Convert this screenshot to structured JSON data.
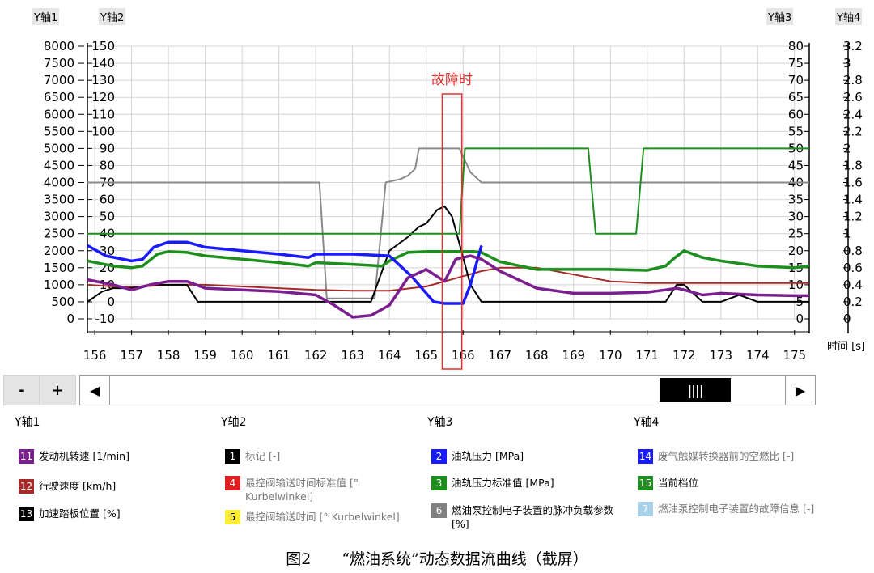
{
  "axes_tags": {
    "top_left": [
      "Y轴1",
      "Y轴2"
    ],
    "top_right": [
      "Y轴3",
      "Y轴4"
    ]
  },
  "chart_data": {
    "type": "line",
    "xlabel": "时间 [s]",
    "xlim": [
      155.8,
      175.4
    ],
    "x_ticks": [
      156,
      157,
      158,
      159,
      160,
      161,
      162,
      163,
      164,
      165,
      166,
      167,
      168,
      169,
      170,
      171,
      172,
      173,
      174,
      175
    ],
    "y_axes": [
      {
        "name": "Y轴1",
        "ticks": [
          8000,
          7500,
          7000,
          6500,
          6000,
          5500,
          5000,
          4500,
          4000,
          3500,
          3000,
          2500,
          2000,
          1500,
          1000,
          500,
          0
        ]
      },
      {
        "name": "Y轴2",
        "ticks": [
          150,
          140,
          130,
          120,
          110,
          100,
          90,
          80,
          70,
          60,
          50,
          40,
          30,
          20,
          10,
          0,
          -10
        ]
      },
      {
        "name": "Y轴3",
        "ticks": [
          80,
          75,
          70,
          65,
          60,
          55,
          50,
          45,
          40,
          35,
          30,
          25,
          20,
          15,
          10,
          5,
          0
        ]
      },
      {
        "name": "Y轴4",
        "ticks": [
          3.2,
          3,
          2.8,
          2.6,
          2.4,
          2.2,
          2,
          1.8,
          1.6,
          1.4,
          1.2,
          1,
          0.8,
          0.6,
          0.4,
          0.2,
          0
        ]
      }
    ],
    "grid": true,
    "annotation": {
      "text": "故障时",
      "x_range": [
        165.5,
        165.9
      ]
    },
    "series": [
      {
        "name": "发动机转速 [1/min]",
        "axis": "Y轴1",
        "color": "#7b1f8f",
        "x": [
          155.8,
          156.5,
          157,
          157.5,
          158,
          158.5,
          159,
          160,
          161,
          161.5,
          162,
          162.5,
          163,
          163.5,
          164,
          164.5,
          165,
          165.5,
          165.8,
          166.2,
          166.5,
          167,
          168,
          169,
          170,
          171,
          171.5,
          171.8,
          172,
          172.5,
          173,
          174,
          175,
          175.4
        ],
        "y": [
          1150,
          1000,
          850,
          1000,
          1100,
          1100,
          900,
          850,
          800,
          750,
          700,
          400,
          50,
          100,
          400,
          1200,
          1450,
          1100,
          1750,
          1850,
          1750,
          1400,
          900,
          750,
          750,
          780,
          850,
          900,
          850,
          700,
          750,
          700,
          680,
          680
        ]
      },
      {
        "name": "行驶速度 [km/h]",
        "axis": "Y轴2",
        "color": "#a52a2a",
        "x": [
          155.8,
          156.5,
          157,
          158,
          159,
          160,
          161,
          162,
          163,
          164,
          165,
          165.5,
          166,
          166.5,
          167,
          168,
          169,
          170,
          171,
          172,
          173,
          174,
          175,
          175.4
        ],
        "y": [
          10,
          9,
          8.5,
          10,
          10,
          9,
          8,
          7,
          6.5,
          6.5,
          9,
          12,
          15,
          18,
          20,
          20,
          16,
          12,
          11,
          11,
          11,
          11,
          11,
          11
        ]
      },
      {
        "name": "加速踏板位置 [%]",
        "axis": "Y轴3",
        "color": "#000000",
        "x": [
          155.8,
          156.2,
          156.5,
          157,
          157.5,
          158,
          158.5,
          158.8,
          159,
          160,
          161,
          162,
          162.5,
          163,
          163.5,
          164,
          164.5,
          164.8,
          165,
          165.3,
          165.5,
          165.7,
          165.9,
          166.2,
          166.5,
          167,
          168,
          169,
          170,
          171,
          171.5,
          171.8,
          172,
          172.5,
          173,
          173.5,
          174,
          175,
          175.4
        ],
        "y": [
          5,
          8,
          9,
          9,
          10,
          10,
          10,
          5,
          5,
          5,
          5,
          5,
          5,
          5,
          5,
          20,
          24,
          27,
          28,
          32,
          33,
          30,
          22,
          10,
          5,
          5,
          5,
          5,
          5,
          5,
          5,
          10,
          10,
          5,
          5,
          7,
          5,
          5,
          5
        ]
      },
      {
        "name": "油轨压力 [MPa]",
        "axis": "Y轴2",
        "color": "#1a1aff",
        "x": [
          155.8,
          156.3,
          157,
          157.3,
          157.6,
          158,
          158.5,
          159,
          160,
          161,
          161.8,
          162,
          163,
          164,
          164.6,
          165.2,
          165.5,
          165.8,
          166,
          166.2,
          166.5
        ],
        "y": [
          33,
          27,
          24,
          25,
          32,
          35,
          35,
          32,
          30,
          28,
          26,
          28,
          28,
          27,
          15,
          0,
          -1,
          -1,
          -1,
          10,
          33
        ]
      },
      {
        "name": "油轨压力标准值 [MPa]",
        "axis": "Y轴4",
        "color": "#1e8f1e",
        "x": [
          155.8,
          156.5,
          157,
          157.3,
          157.7,
          158,
          158.5,
          159,
          160,
          161,
          161.8,
          162,
          163,
          163.8,
          164,
          164.5,
          165,
          165.5,
          165.9,
          166.1,
          166.3,
          166.5,
          167,
          168,
          169,
          170,
          171,
          171.5,
          171.7,
          172,
          172.5,
          173,
          174,
          175,
          175.4
        ],
        "y": [
          0.68,
          0.62,
          0.6,
          0.62,
          0.76,
          0.79,
          0.78,
          0.74,
          0.7,
          0.66,
          0.62,
          0.66,
          0.64,
          0.62,
          0.68,
          0.78,
          0.79,
          0.79,
          0.79,
          0.79,
          0.79,
          0.78,
          0.67,
          0.58,
          0.58,
          0.58,
          0.57,
          0.62,
          0.7,
          0.8,
          0.72,
          0.68,
          0.62,
          0.6,
          0.62
        ]
      },
      {
        "name": "燃油泵控制电子装置的脉冲负载参数 [%]",
        "axis": "Y轴3",
        "color": "#8a8a8a",
        "x": [
          155.8,
          162.1,
          162.3,
          163.6,
          163.9,
          164.3,
          164.5,
          164.7,
          164.8,
          165,
          165.5,
          165.9,
          166.2,
          166.5,
          167,
          175.4
        ],
        "y": [
          40,
          40,
          6,
          6,
          40,
          41,
          42,
          44,
          50,
          50,
          50,
          50,
          43,
          40,
          40,
          40
        ]
      },
      {
        "name": "当前档位",
        "axis": "Y轴4",
        "color": "#1e8f1e",
        "x": [
          155.8,
          165.9,
          166.05,
          169.4,
          169.6,
          170.7,
          170.9,
          175.4
        ],
        "y": [
          1,
          1,
          2,
          2,
          1,
          1,
          2,
          2
        ]
      }
    ]
  },
  "scrollbar": {
    "minus": "-",
    "plus": "+",
    "left_arrow": "◀",
    "right_arrow": "▶",
    "thumb": "||||"
  },
  "bottom_axes": [
    "Y轴1",
    "Y轴2",
    "Y轴3",
    "Y轴4"
  ],
  "legend": [
    {
      "num": "11",
      "text": "发动机转速 [1/min]",
      "color": "#7b1f8f",
      "text_color": "#000",
      "num_color": "#fff"
    },
    {
      "num": "12",
      "text": "行驶速度 [km/h]",
      "color": "#a52a2a",
      "text_color": "#000",
      "num_color": "#fff"
    },
    {
      "num": "13",
      "text": "加速踏板位置 [%]",
      "color": "#000000",
      "text_color": "#000",
      "num_color": "#fff"
    },
    {
      "num": "1",
      "text": "标记 [-]",
      "color": "#000000",
      "text_color": "#777",
      "num_color": "#fff"
    },
    {
      "num": "4",
      "text": "最控阀输送时间标准值 [° Kurbelwinkel]",
      "color": "#e02020",
      "text_color": "#777",
      "num_color": "#fff"
    },
    {
      "num": "5",
      "text": "最控阀输送时间 [° Kurbelwinkel]",
      "color": "#ffee33",
      "text_color": "#777",
      "num_color": "#000"
    },
    {
      "num": "2",
      "text": "油轨压力 [MPa]",
      "color": "#1a1aff",
      "text_color": "#000",
      "num_color": "#fff"
    },
    {
      "num": "3",
      "text": "油轨压力标准值 [MPa]",
      "color": "#1e8f1e",
      "text_color": "#000",
      "num_color": "#fff"
    },
    {
      "num": "6",
      "text": "燃油泵控制电子装置的脉冲负载参数 [%]",
      "color": "#808080",
      "text_color": "#000",
      "num_color": "#fff"
    },
    {
      "num": "14",
      "text": "废气触媒转换器前的空燃比 [-]",
      "color": "#1a1aff",
      "text_color": "#777",
      "num_color": "#fff"
    },
    {
      "num": "15",
      "text": "当前档位",
      "color": "#1e8f1e",
      "text_color": "#000",
      "num_color": "#fff"
    },
    {
      "num": "7",
      "text": "燃油泵控制电子装置的故障信息 [-]",
      "color": "#a8d0e6",
      "text_color": "#777",
      "num_color": "#fff"
    }
  ],
  "caption": "图2　　“燃油系统”动态数据流曲线（截屏）"
}
